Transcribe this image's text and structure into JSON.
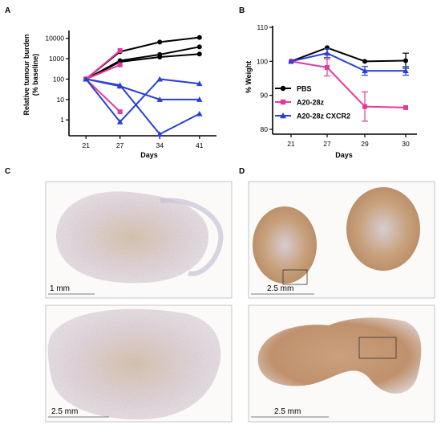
{
  "panels": {
    "a": "A",
    "b": "B",
    "c": "C",
    "d": "D"
  },
  "colors": {
    "pbs": "#000000",
    "a20_28z": "#e5399a",
    "cxcr2": "#2a3fd6"
  },
  "chart_data": [
    {
      "type": "line",
      "panel": "A",
      "xlabel": "Days",
      "ylabel": "Relative tumour burden",
      "ylabel2": "(% baseline)",
      "x_ticks": [
        "21",
        "27",
        "34",
        "41"
      ],
      "y_ticks": [
        "10000",
        "1000",
        "100",
        "10",
        "1"
      ],
      "yscale": "log",
      "ylim": [
        0.2,
        20000
      ],
      "xlim": [
        18,
        44
      ],
      "groups": [
        {
          "group": "PBS",
          "color_key": "pbs",
          "marker": "circle",
          "lines": [
            {
              "x": [
                21,
                27,
                34,
                41
              ],
              "y": [
                100,
                2200,
                6500,
                11000
              ]
            },
            {
              "x": [
                21,
                27,
                34,
                41
              ],
              "y": [
                100,
                800,
                1600,
                3800
              ]
            },
            {
              "x": [
                21,
                27,
                34,
                41
              ],
              "y": [
                100,
                700,
                1200,
                1700
              ]
            }
          ]
        },
        {
          "group": "A20-28z",
          "color_key": "a20_28z",
          "marker": "square",
          "lines": [
            {
              "x": [
                21,
                27
              ],
              "y": [
                100,
                2500
              ]
            },
            {
              "x": [
                21,
                27
              ],
              "y": [
                100,
                500
              ]
            },
            {
              "x": [
                21,
                27
              ],
              "y": [
                100,
                2.5
              ]
            }
          ]
        },
        {
          "group": "A20-28z CXCR2",
          "color_key": "cxcr2",
          "marker": "triangle",
          "lines": [
            {
              "x": [
                21,
                27,
                34,
                41
              ],
              "y": [
                100,
                50,
                0.2,
                2
              ]
            },
            {
              "x": [
                21,
                27,
                34,
                41
              ],
              "y": [
                100,
                45,
                10,
                10
              ]
            },
            {
              "x": [
                21,
                27,
                34,
                41
              ],
              "y": [
                100,
                0.8,
                100,
                60
              ]
            }
          ]
        }
      ]
    },
    {
      "type": "line",
      "panel": "B",
      "xlabel": "Days",
      "ylabel": "% Weight",
      "x_ticks": [
        "21",
        "27",
        "29",
        "30"
      ],
      "y_ticks": [
        "110",
        "100",
        "90",
        "80"
      ],
      "ylim": [
        80,
        110
      ],
      "legend": {
        "position": "inside-bottom-left"
      },
      "series": [
        {
          "name": "PBS",
          "color_key": "pbs",
          "marker": "circle",
          "values": [
            100,
            104,
            100,
            100.2
          ],
          "errors": [
            0,
            0,
            0,
            2.2
          ]
        },
        {
          "name": "A20-28z",
          "color_key": "a20_28z",
          "marker": "square",
          "values": [
            100,
            98.2,
            86.7,
            86.4
          ],
          "errors": [
            0,
            2.5,
            4.3,
            0
          ]
        },
        {
          "name": "A20-28z CXCR2",
          "color_key": "cxcr2",
          "marker": "triangle",
          "values": [
            100,
            102.4,
            97.2,
            97.2
          ],
          "errors": [
            0,
            1.3,
            1.3,
            1.3
          ]
        }
      ]
    }
  ],
  "micrographs": [
    {
      "name": "c-top",
      "scale_label": "1 mm"
    },
    {
      "name": "c-bottom",
      "scale_label": "2.5 mm"
    },
    {
      "name": "d-top",
      "scale_label": "2.5 mm"
    },
    {
      "name": "d-bottom",
      "scale_label": "2.5 mm"
    }
  ]
}
